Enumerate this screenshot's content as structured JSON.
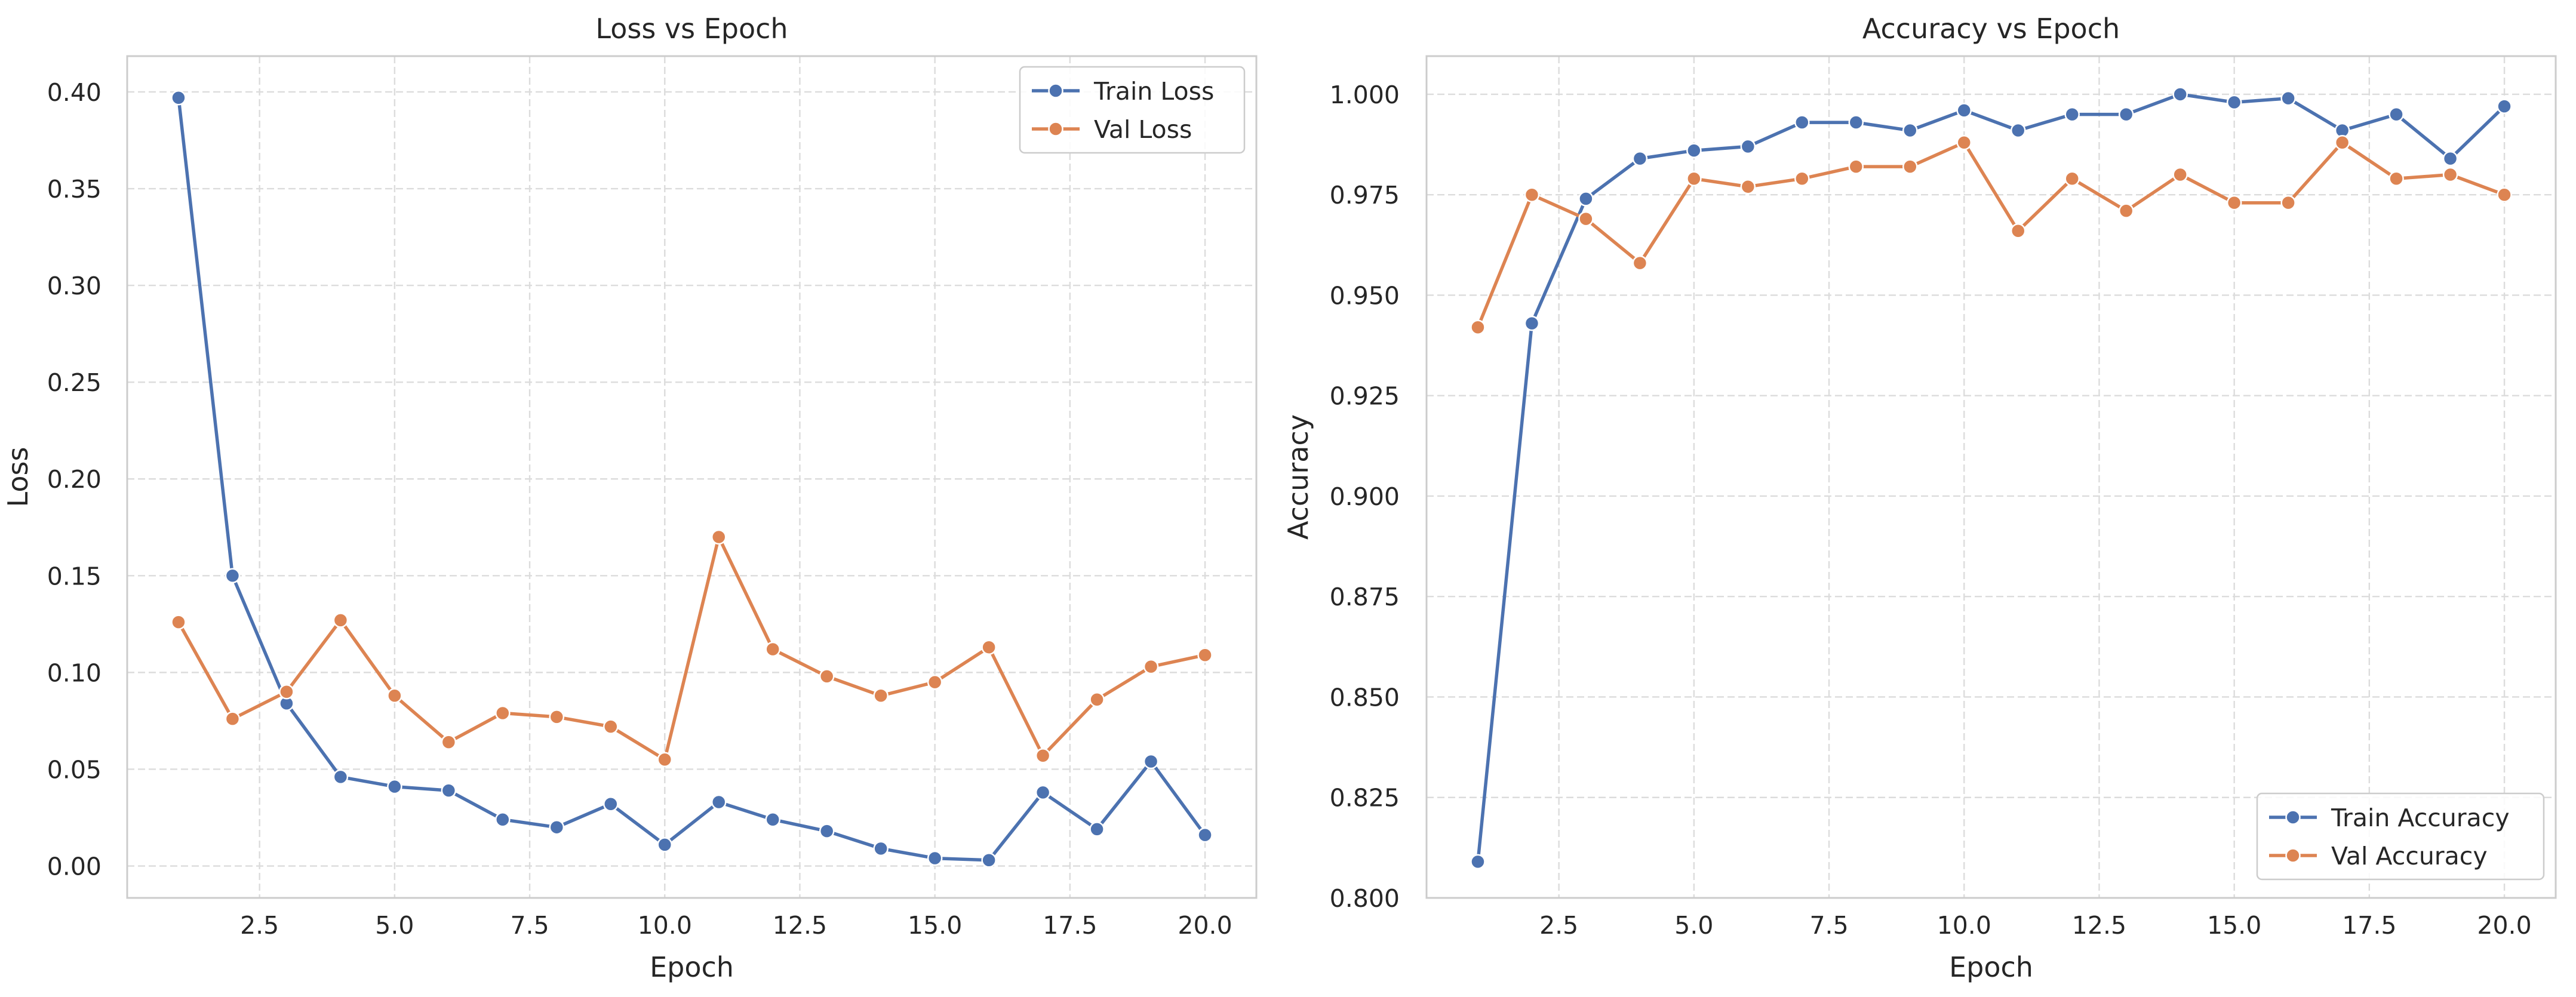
{
  "chart_data": [
    {
      "type": "line",
      "title": "Loss vs Epoch",
      "xlabel": "Epoch",
      "ylabel": "Loss",
      "xlim": [
        0.05,
        20.95
      ],
      "ylim": [
        -0.0165,
        0.4185
      ],
      "x_ticks": [
        2.5,
        5.0,
        7.5,
        10.0,
        12.5,
        15.0,
        17.5,
        20.0
      ],
      "x_tick_labels": [
        "2.5",
        "5.0",
        "7.5",
        "10.0",
        "12.5",
        "15.0",
        "17.5",
        "20.0"
      ],
      "y_ticks": [
        0.0,
        0.05,
        0.1,
        0.15,
        0.2,
        0.25,
        0.3,
        0.35,
        0.4
      ],
      "y_tick_labels": [
        "0.00",
        "0.05",
        "0.10",
        "0.15",
        "0.20",
        "0.25",
        "0.30",
        "0.35",
        "0.40"
      ],
      "grid": true,
      "legend_position": "top-right",
      "x": [
        1,
        2,
        3,
        4,
        5,
        6,
        7,
        8,
        9,
        10,
        11,
        12,
        13,
        14,
        15,
        16,
        17,
        18,
        19,
        20
      ],
      "series": [
        {
          "name": "Train Loss",
          "color": "#4c72b0",
          "values": [
            0.397,
            0.15,
            0.084,
            0.046,
            0.041,
            0.039,
            0.024,
            0.02,
            0.032,
            0.011,
            0.033,
            0.024,
            0.018,
            0.009,
            0.004,
            0.003,
            0.038,
            0.019,
            0.054,
            0.016
          ]
        },
        {
          "name": "Val Loss",
          "color": "#dd8452",
          "values": [
            0.126,
            0.076,
            0.09,
            0.127,
            0.088,
            0.064,
            0.079,
            0.077,
            0.072,
            0.055,
            0.17,
            0.112,
            0.098,
            0.088,
            0.095,
            0.113,
            0.057,
            0.086,
            0.103,
            0.109
          ]
        }
      ]
    },
    {
      "type": "line",
      "title": "Accuracy vs Epoch",
      "xlabel": "Epoch",
      "ylabel": "Accuracy",
      "xlim": [
        0.05,
        20.95
      ],
      "ylim": [
        0.8,
        1.0095
      ],
      "x_ticks": [
        2.5,
        5.0,
        7.5,
        10.0,
        12.5,
        15.0,
        17.5,
        20.0
      ],
      "x_tick_labels": [
        "2.5",
        "5.0",
        "7.5",
        "10.0",
        "12.5",
        "15.0",
        "17.5",
        "20.0"
      ],
      "y_ticks": [
        0.8,
        0.825,
        0.85,
        0.875,
        0.9,
        0.925,
        0.95,
        0.975,
        1.0
      ],
      "y_tick_labels": [
        "0.800",
        "0.825",
        "0.850",
        "0.875",
        "0.900",
        "0.925",
        "0.950",
        "0.975",
        "1.000"
      ],
      "grid": true,
      "legend_position": "bottom-right",
      "x": [
        1,
        2,
        3,
        4,
        5,
        6,
        7,
        8,
        9,
        10,
        11,
        12,
        13,
        14,
        15,
        16,
        17,
        18,
        19,
        20
      ],
      "series": [
        {
          "name": "Train Accuracy",
          "color": "#4c72b0",
          "values": [
            0.809,
            0.943,
            0.974,
            0.984,
            0.986,
            0.987,
            0.993,
            0.993,
            0.991,
            0.996,
            0.991,
            0.995,
            0.995,
            1.0,
            0.998,
            0.999,
            0.991,
            0.995,
            0.984,
            0.997
          ]
        },
        {
          "name": "Val Accuracy",
          "color": "#dd8452",
          "values": [
            0.942,
            0.975,
            0.969,
            0.958,
            0.979,
            0.977,
            0.979,
            0.982,
            0.982,
            0.988,
            0.966,
            0.979,
            0.971,
            0.98,
            0.973,
            0.973,
            0.988,
            0.979,
            0.98,
            0.975
          ]
        }
      ]
    }
  ]
}
